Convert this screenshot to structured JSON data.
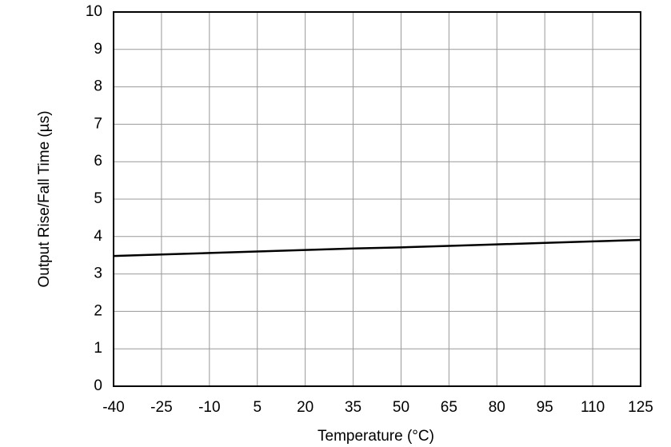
{
  "chart_data": {
    "type": "line",
    "x_label": "Temperature (°C)",
    "y_label": "Output Rise/Fall Time (µs)",
    "x": [
      -40,
      -25,
      -10,
      5,
      20,
      35,
      50,
      65,
      80,
      95,
      110,
      125
    ],
    "series": [
      {
        "color": "#000000",
        "values": [
          3.48,
          3.52,
          3.56,
          3.6,
          3.64,
          3.68,
          3.71,
          3.75,
          3.79,
          3.83,
          3.87,
          3.91
        ]
      }
    ],
    "xlim": [
      -40,
      125
    ],
    "xticks": [
      -40,
      -25,
      -10,
      5,
      20,
      35,
      50,
      65,
      80,
      95,
      110,
      125
    ],
    "ylim": [
      0,
      10
    ],
    "yticks": [
      0,
      1,
      2,
      3,
      4,
      5,
      6,
      7,
      8,
      9,
      10
    ],
    "grid": true
  }
}
